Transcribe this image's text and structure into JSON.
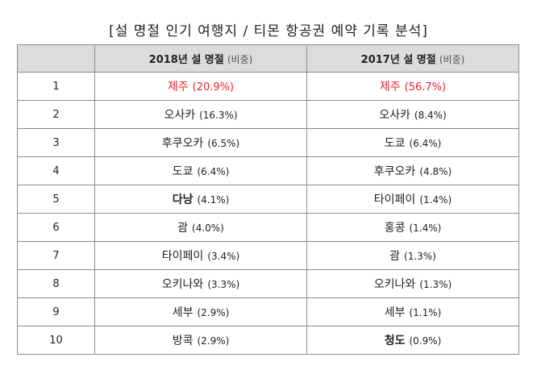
{
  "title": "[설 명절 인기 여행지 / 티몬 항공권 예약 기록 분석]",
  "header": {
    "rank": "",
    "col_2018": "2018년 설 명절",
    "col_2017": "2017년 설 명절",
    "share": "(비중)"
  },
  "rows": [
    {
      "rank": "1",
      "y2018": {
        "dest": "제주",
        "pct": "(20.9%)"
      },
      "y2017": {
        "dest": "제주",
        "pct": "(56.7%)"
      }
    },
    {
      "rank": "2",
      "y2018": {
        "dest": "오사카",
        "pct": "(16.3%)"
      },
      "y2017": {
        "dest": "오사카",
        "pct": "(8.4%)"
      }
    },
    {
      "rank": "3",
      "y2018": {
        "dest": "후쿠오카",
        "pct": "(6.5%)"
      },
      "y2017": {
        "dest": "도쿄",
        "pct": "(6.4%)"
      }
    },
    {
      "rank": "4",
      "y2018": {
        "dest": "도쿄",
        "pct": "(6.4%)"
      },
      "y2017": {
        "dest": "후쿠오카",
        "pct": "(4.8%)"
      }
    },
    {
      "rank": "5",
      "y2018": {
        "dest": "다낭",
        "pct": "(4.1%)"
      },
      "y2017": {
        "dest": "타이페이",
        "pct": "(1.4%)"
      }
    },
    {
      "rank": "6",
      "y2018": {
        "dest": "괌",
        "pct": "(4.0%)"
      },
      "y2017": {
        "dest": "홍콩",
        "pct": "(1.4%)"
      }
    },
    {
      "rank": "7",
      "y2018": {
        "dest": "타이페이",
        "pct": "(3.4%)"
      },
      "y2017": {
        "dest": "괌",
        "pct": "(1.3%)"
      }
    },
    {
      "rank": "8",
      "y2018": {
        "dest": "오키나와",
        "pct": "(3.3%)"
      },
      "y2017": {
        "dest": "오키나와",
        "pct": "(1.3%)"
      }
    },
    {
      "rank": "9",
      "y2018": {
        "dest": "세부",
        "pct": "(2.9%)"
      },
      "y2017": {
        "dest": "세부",
        "pct": "(1.1%)"
      }
    },
    {
      "rank": "10",
      "y2018": {
        "dest": "방콕",
        "pct": "(2.9%)"
      },
      "y2017": {
        "dest": "청도",
        "pct": "(0.9%)"
      }
    }
  ],
  "colors": {
    "highlight": "#e8252b",
    "header_bg": "#dcdcdc",
    "border": "#8c8c8c"
  }
}
